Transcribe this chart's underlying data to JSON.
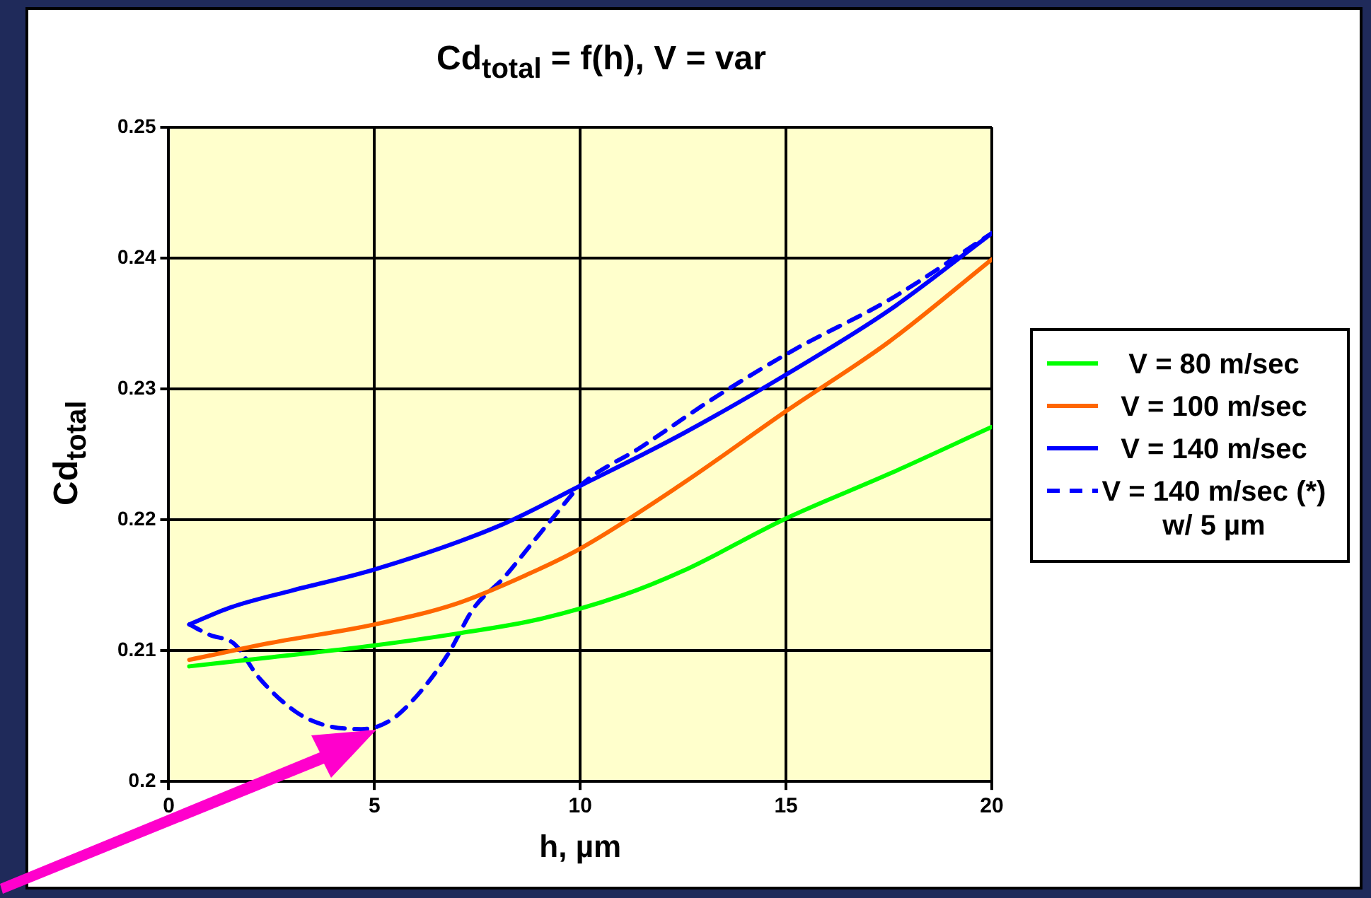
{
  "chart_data": {
    "type": "line",
    "title": "Cd$_{total}$ = f(h),  V = var",
    "xlabel": "h, µm",
    "ylabel": "Cd$_{total}$",
    "xlim": [
      0,
      20
    ],
    "xticks": [
      0,
      5,
      10,
      15,
      20
    ],
    "ylim": [
      0.2,
      0.25
    ],
    "yticks": [
      0.2,
      0.21,
      0.22,
      0.23,
      0.24,
      0.25
    ],
    "grid": true,
    "legend": "right",
    "marker": "none",
    "series": [
      {
        "name": "V = 80 m/sec",
        "color": "#00ff00",
        "x": [
          0.5,
          2.5,
          5,
          7,
          9,
          11,
          12.5,
          15,
          17.5,
          20
        ],
        "values": [
          0.2088,
          0.2095,
          0.2104,
          0.2113,
          0.2124,
          0.2142,
          0.2161,
          0.2201,
          0.2235,
          0.2271
        ]
      },
      {
        "name": "V = 100 m/sec",
        "color": "#ff6600",
        "x": [
          0.5,
          2.5,
          5,
          7,
          8.7,
          10,
          12.5,
          15,
          17.5,
          20
        ],
        "values": [
          0.2093,
          0.2106,
          0.212,
          0.2136,
          0.2158,
          0.2178,
          0.2228,
          0.2283,
          0.2336,
          0.2399
        ]
      },
      {
        "name": "V = 140 m/sec",
        "color": "#0000ff",
        "x": [
          0.5,
          1.5,
          3,
          5,
          8,
          10,
          12.5,
          15,
          17.5,
          20
        ],
        "values": [
          0.212,
          0.2133,
          0.2146,
          0.2162,
          0.2195,
          0.2226,
          0.2266,
          0.2311,
          0.236,
          0.2419
        ]
      },
      {
        "name": "V = 140 m/sec (*) w/ 5 µm",
        "color": "#0000ff",
        "line_style": "dashed",
        "x": [
          0.5,
          1,
          1.6,
          2.2,
          3.1,
          3.8,
          4.7,
          5.4,
          6.1,
          6.8,
          7.4,
          8.15,
          8.8,
          9.4,
          10,
          11.5,
          13.2,
          15.2,
          17.5,
          20
        ],
        "values": [
          0.212,
          0.2112,
          0.2105,
          0.2079,
          0.2053,
          0.2043,
          0.204,
          0.2047,
          0.2068,
          0.2098,
          0.2132,
          0.2156,
          0.2181,
          0.2204,
          0.2226,
          0.2256,
          0.2292,
          0.233,
          0.2368,
          0.2419
        ]
      }
    ]
  }
}
